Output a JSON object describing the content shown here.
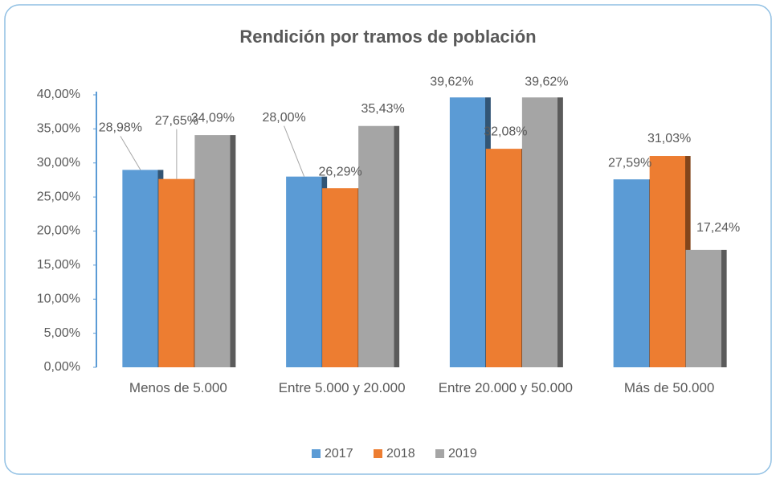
{
  "chart_data": {
    "type": "bar",
    "title": "Rendición por tramos de población",
    "categories": [
      "Menos de 5.000",
      "Entre 5.000 y 20.000",
      "Entre 20.000 y 50.000",
      "Más de 50.000"
    ],
    "series": [
      {
        "name": "2017",
        "color": "#5b9bd5",
        "values": [
          28.98,
          28.0,
          39.62,
          27.59
        ],
        "value_labels": [
          "28,98%",
          "28,00%",
          "39,62%",
          "27,59%"
        ]
      },
      {
        "name": "2018",
        "color": "#ed7d31",
        "values": [
          27.65,
          26.29,
          32.08,
          31.03
        ],
        "value_labels": [
          "27,65%",
          "26,29%",
          "32,08%",
          "31,03%"
        ]
      },
      {
        "name": "2019",
        "color": "#a5a5a5",
        "values": [
          34.09,
          35.43,
          39.62,
          17.24
        ],
        "value_labels": [
          "34,09%",
          "35,43%",
          "39,62%",
          "17,24%"
        ]
      }
    ],
    "ylim": [
      0,
      40
    ],
    "yticks": [
      {
        "value": 0,
        "label": "0,00%"
      },
      {
        "value": 5,
        "label": "5,00%"
      },
      {
        "value": 10,
        "label": "10,00%"
      },
      {
        "value": 15,
        "label": "15,00%"
      },
      {
        "value": 20,
        "label": "20,00%"
      },
      {
        "value": 25,
        "label": "25,00%"
      },
      {
        "value": 30,
        "label": "30,00%"
      },
      {
        "value": 35,
        "label": "35,00%"
      },
      {
        "value": 40,
        "label": "40,00%"
      }
    ],
    "legend": "bottom"
  }
}
